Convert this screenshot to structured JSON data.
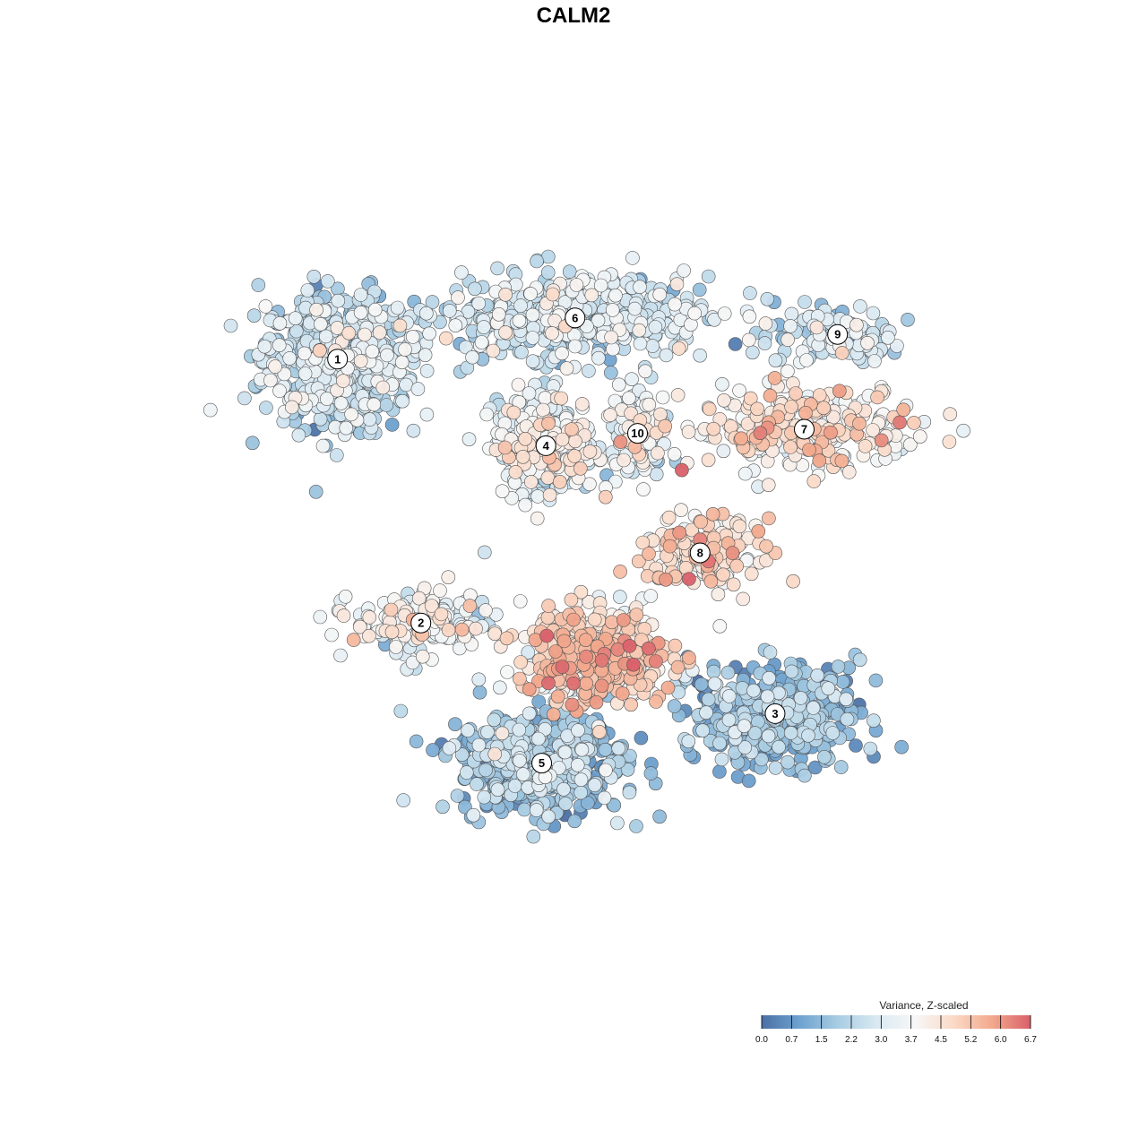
{
  "chart_data": {
    "type": "scatter",
    "title": "CALM2",
    "legend": {
      "title": "Variance, Z-scaled",
      "position": "bottom-right",
      "ticks": [
        "0.0",
        "0.7",
        "1.5",
        "2.2",
        "3.0",
        "3.7",
        "4.5",
        "5.2",
        "6.0",
        "6.7"
      ],
      "range": [
        0.0,
        6.7
      ],
      "palette": [
        "#4a6fa5",
        "#6fa3d0",
        "#a9cde3",
        "#d9e9f2",
        "#f7f7f7",
        "#fbd9c6",
        "#f2a98d",
        "#d9606a"
      ]
    },
    "grid": false,
    "axes_visible": false,
    "clusters": [
      {
        "label": "1",
        "center": [
          -62,
          52
        ],
        "spread": [
          9,
          8
        ],
        "mean": 2.4,
        "n": 620
      },
      {
        "label": "6",
        "center": [
          -5,
          62
        ],
        "spread": [
          16,
          5
        ],
        "mean": 2.6,
        "n": 480
      },
      {
        "label": "9",
        "center": [
          58,
          58
        ],
        "spread": [
          8,
          4
        ],
        "mean": 2.7,
        "n": 120
      },
      {
        "label": "7",
        "center": [
          50,
          35
        ],
        "spread": [
          14,
          5
        ],
        "mean": 4.2,
        "n": 260
      },
      {
        "label": "4",
        "center": [
          -12,
          31
        ],
        "spread": [
          6,
          6
        ],
        "mean": 3.3,
        "n": 330
      },
      {
        "label": "10",
        "center": [
          10,
          34
        ],
        "spread": [
          4,
          5
        ],
        "mean": 3.4,
        "n": 110
      },
      {
        "label": "8",
        "center": [
          25,
          5
        ],
        "spread": [
          7,
          4
        ],
        "mean": 4.4,
        "n": 170
      },
      {
        "label": "2",
        "center": [
          -42,
          -12
        ],
        "spread": [
          8,
          4
        ],
        "mean": 3.4,
        "n": 200
      },
      {
        "label": "3",
        "center": [
          43,
          -34
        ],
        "spread": [
          10,
          6
        ],
        "mean": 1.4,
        "n": 430
      },
      {
        "label": "5",
        "center": [
          -13,
          -46
        ],
        "spread": [
          10,
          6
        ],
        "mean": 1.6,
        "n": 560
      },
      {
        "label": "",
        "center": [
          0,
          -20
        ],
        "spread": [
          9,
          6
        ],
        "mean": 4.6,
        "n": 420
      }
    ],
    "xlim": [
      -100,
      100
    ],
    "ylim": [
      -100,
      100
    ]
  }
}
